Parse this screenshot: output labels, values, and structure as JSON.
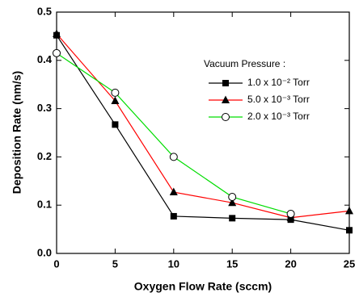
{
  "chart_data": {
    "type": "line",
    "x_label": "Oxygen Flow Rate (sccm)",
    "y_label": "Deposition Rate (nm/s)",
    "legend_title": "Vacuum Pressure :",
    "x": [
      0,
      5,
      10,
      15,
      20,
      25
    ],
    "series": [
      {
        "name": "1.0 x 10⁻² Torr",
        "color": "#000000",
        "marker": "square",
        "values": [
          0.452,
          0.267,
          0.077,
          0.073,
          0.07,
          0.048
        ]
      },
      {
        "name": "5.0 x 10⁻³  Torr",
        "color": "#ff0000",
        "marker": "triangle",
        "values": [
          0.455,
          0.316,
          0.127,
          0.105,
          0.074,
          0.088
        ]
      },
      {
        "name": "2.0 x 10⁻³ Torr",
        "color": "#00dd00",
        "marker": "circle",
        "values": [
          0.415,
          0.333,
          0.2,
          0.117,
          0.082,
          null
        ]
      }
    ],
    "xlim": [
      0,
      25
    ],
    "xticks": [
      0,
      5,
      10,
      15,
      20,
      25
    ],
    "ylim": [
      0,
      0.5
    ],
    "yticks": [
      {
        "value": 0,
        "label": "0.0"
      },
      0.1,
      0.2,
      0.3,
      0.4,
      0.5
    ],
    "grid": false
  }
}
